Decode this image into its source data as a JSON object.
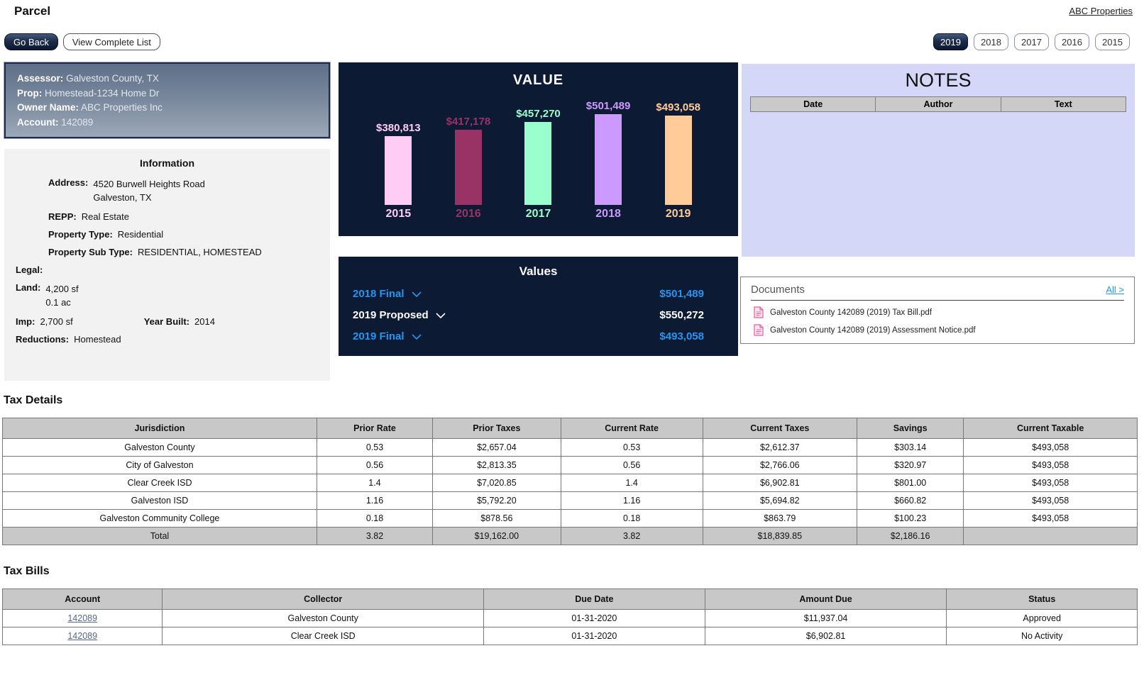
{
  "header": {
    "title": "Parcel",
    "top_right_link": "ABC Properties",
    "go_back_label": "Go Back",
    "view_complete_list_label": "View Complete List",
    "years": [
      {
        "label": "2019",
        "active": true
      },
      {
        "label": "2018",
        "active": false
      },
      {
        "label": "2017",
        "active": false
      },
      {
        "label": "2016",
        "active": false
      },
      {
        "label": "2015",
        "active": false
      }
    ]
  },
  "assessor_box": {
    "assessor_label": "Assessor:",
    "assessor": "Galveston County, TX",
    "prop_label": "Prop:",
    "prop": "Homestead-1234 Home Dr",
    "owner_label": "Owner Name:",
    "owner": "ABC Properties Inc",
    "account_label": "Account:",
    "account": "142089"
  },
  "information": {
    "title": "Information",
    "address_label": "Address:",
    "address_line1": "4520 Burwell Heights Road",
    "address_line2": "Galveston, TX",
    "repp_label": "REPP:",
    "repp": "Real Estate",
    "property_type_label": "Property Type:",
    "property_type": "Residential",
    "property_sub_type_label": "Property Sub Type:",
    "property_sub_type": "RESIDENTIAL, HOMESTEAD",
    "legal_label": "Legal:",
    "legal": "",
    "land_label": "Land:",
    "land_sf": "4,200 sf",
    "land_ac": "0.1 ac",
    "imp_label": "Imp:",
    "imp": "2,700 sf",
    "year_built_label": "Year Built:",
    "year_built": "2014",
    "reductions_label": "Reductions:",
    "reductions": "Homestead"
  },
  "chart_data": {
    "type": "bar",
    "title": "VALUE",
    "categories": [
      "2015",
      "2016",
      "2017",
      "2018",
      "2019"
    ],
    "values": [
      380813,
      417178,
      457270,
      501489,
      493058
    ],
    "value_labels": [
      "$380,813",
      "$417,178",
      "$457,270",
      "$501,489",
      "$493,058"
    ],
    "bar_colors": [
      "#ffccf5",
      "#993366",
      "#99ffcc",
      "#cc99ff",
      "#ffcc99"
    ],
    "background_color": "#0d1a33",
    "ylim": [
      0,
      501489
    ],
    "grid": false,
    "legend": "none"
  },
  "values_panel": {
    "title": "Values",
    "rows": [
      {
        "label": "2018 Final",
        "amount": "$501,489",
        "color": "#2196f3"
      },
      {
        "label": "2019 Proposed",
        "amount": "$550,272",
        "color": "#ffffff"
      },
      {
        "label": "2019 Final",
        "amount": "$493,058",
        "color": "#2196f3"
      }
    ]
  },
  "notes": {
    "title": "NOTES",
    "columns": [
      "Date",
      "Author",
      "Text"
    ],
    "rows": [],
    "background_color": "#d5d7f8"
  },
  "documents": {
    "title": "Documents",
    "all_link": "All >",
    "items": [
      "Galveston County 142089 (2019) Tax Bill.pdf",
      "Galveston County 142089 (2019) Assessment Notice.pdf"
    ],
    "pdf_icon_color": "#f0579a"
  },
  "tax_details": {
    "heading": "Tax Details",
    "columns": [
      "Jurisdiction",
      "Prior Rate",
      "Prior Taxes",
      "Current Rate",
      "Current Taxes",
      "Savings",
      "Current Taxable"
    ],
    "col_widths_pct": [
      27.7,
      10.2,
      11.3,
      12.5,
      13.6,
      9.4,
      15.3
    ],
    "rows": [
      [
        "Galveston County",
        "0.53",
        "$2,657.04",
        "0.53",
        "$2,612.37",
        "$303.14",
        "$493,058"
      ],
      [
        "City of Galveston",
        "0.56",
        "$2,813.35",
        "0.56",
        "$2,766.06",
        "$320.97",
        "$493,058"
      ],
      [
        "Clear Creek ISD",
        "1.4",
        "$7,020.85",
        "1.4",
        "$6,902.81",
        "$801.00",
        "$493,058"
      ],
      [
        "Galveston ISD",
        "1.16",
        "$5,792.20",
        "1.16",
        "$5,694.82",
        "$660.82",
        "$493,058"
      ],
      [
        "Galveston Community College",
        "0.18",
        "$878.56",
        "0.18",
        "$863.79",
        "$100.23",
        "$493,058"
      ]
    ],
    "total_row": [
      "Total",
      "3.82",
      "$19,162.00",
      "3.82",
      "$18,839.85",
      "$2,186.16",
      ""
    ]
  },
  "tax_bills": {
    "heading": "Tax Bills",
    "columns": [
      "Account",
      "Collector",
      "Due Date",
      "Amount Due",
      "Status"
    ],
    "col_widths_pct": [
      14.1,
      28.3,
      19.5,
      21.3,
      16.8
    ],
    "rows": [
      [
        "142089",
        "Galveston County",
        "01-31-2020",
        "$11,937.04",
        "Approved"
      ],
      [
        "142089",
        "Clear Creek ISD",
        "01-31-2020",
        "$6,902.81",
        "No Activity"
      ]
    ],
    "account_link_color": "#56688e"
  }
}
